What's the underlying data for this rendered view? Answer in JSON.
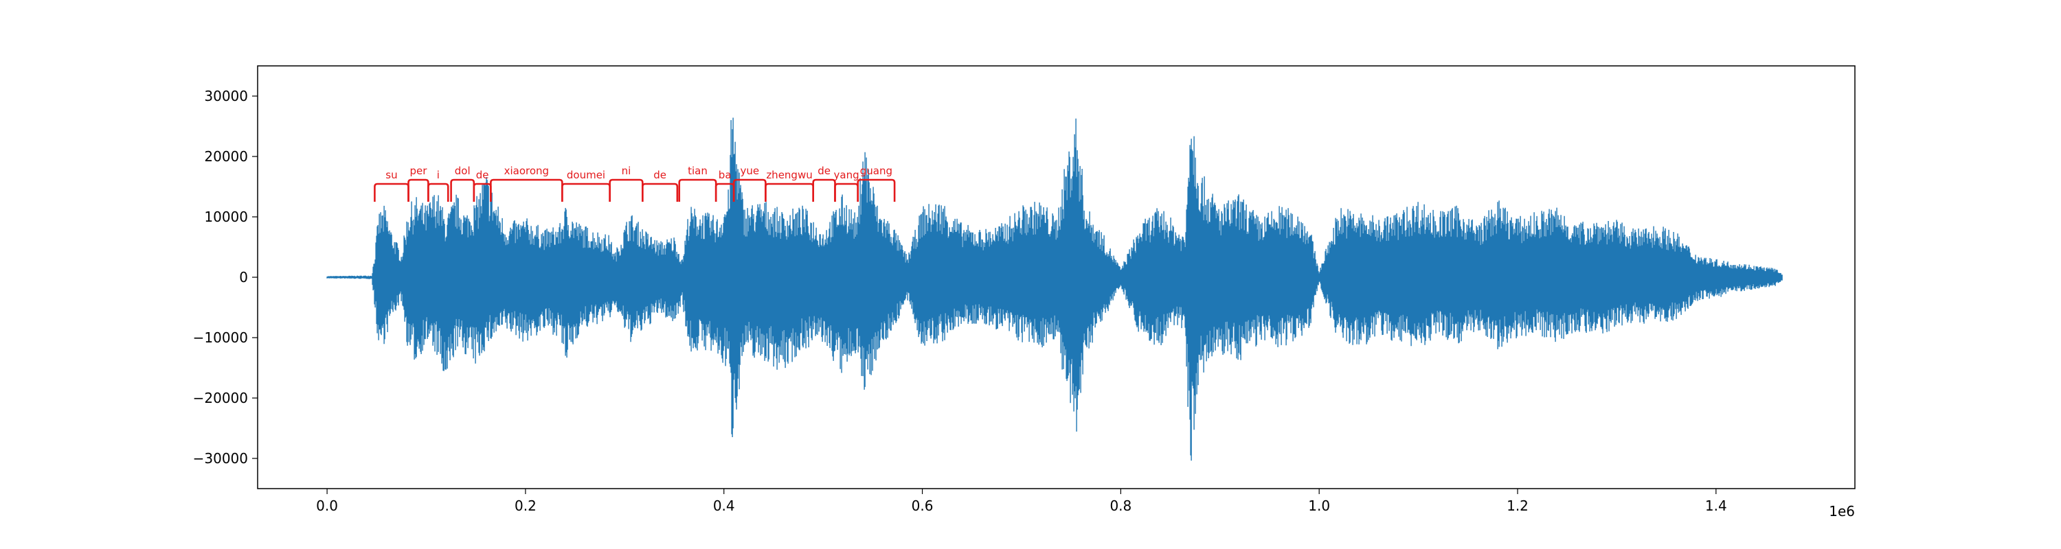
{
  "chart_data": {
    "type": "line",
    "title": "",
    "xlabel": "",
    "ylabel": "",
    "x_offset_label": "1e6",
    "xlim": [
      -70000,
      1540000
    ],
    "ylim": [
      -35000,
      35000
    ],
    "x_ticks": [
      {
        "value": 0.0,
        "label": "0.0"
      },
      {
        "value": 0.2,
        "label": "0.2"
      },
      {
        "value": 0.4,
        "label": "0.4"
      },
      {
        "value": 0.6,
        "label": "0.6"
      },
      {
        "value": 0.8,
        "label": "0.8"
      },
      {
        "value": 1.0,
        "label": "1.0"
      },
      {
        "value": 1.2,
        "label": "1.2"
      },
      {
        "value": 1.4,
        "label": "1.4"
      }
    ],
    "y_ticks": [
      {
        "value": 30000,
        "label": "30000"
      },
      {
        "value": 20000,
        "label": "20000"
      },
      {
        "value": 10000,
        "label": "10000"
      },
      {
        "value": 0,
        "label": "0"
      },
      {
        "value": -10000,
        "label": "−10000"
      },
      {
        "value": -20000,
        "label": "−20000"
      },
      {
        "value": -30000,
        "label": "−30000"
      }
    ],
    "grid": false,
    "legend": "none",
    "series_color": "#1f77b4",
    "annotation_color": "#e31a1c",
    "waveform_envelope": {
      "x": [
        0,
        45000,
        48000,
        52000,
        58000,
        65000,
        75000,
        82000,
        90000,
        100000,
        110000,
        120000,
        130000,
        140000,
        150000,
        160000,
        170000,
        180000,
        200000,
        220000,
        235000,
        240000,
        255000,
        270000,
        285000,
        290000,
        305000,
        320000,
        335000,
        350000,
        358000,
        365000,
        380000,
        395000,
        405000,
        408000,
        420000,
        440000,
        460000,
        480000,
        500000,
        520000,
        535000,
        540000,
        555000,
        570000,
        585000,
        600000,
        620000,
        640000,
        660000,
        680000,
        700000,
        720000,
        735000,
        745000,
        755000,
        765000,
        780000,
        800000,
        820000,
        840000,
        855000,
        865000,
        870000,
        880000,
        900000,
        920000,
        940000,
        960000,
        980000,
        990000,
        1000000,
        1020000,
        1040000,
        1060000,
        1080000,
        1100000,
        1120000,
        1140000,
        1160000,
        1180000,
        1200000,
        1220000,
        1240000,
        1260000,
        1280000,
        1300000,
        1320000,
        1340000,
        1360000,
        1380000,
        1400000,
        1420000,
        1440000,
        1460000,
        1467000
      ],
      "top": [
        200,
        300,
        4000,
        11000,
        12000,
        8000,
        4000,
        12000,
        13500,
        12000,
        15000,
        10000,
        14000,
        11000,
        13000,
        18000,
        13000,
        9000,
        10000,
        8000,
        9000,
        12000,
        9000,
        8000,
        7000,
        4000,
        11000,
        8000,
        6000,
        7000,
        3000,
        12000,
        11000,
        10000,
        15000,
        30500,
        12000,
        13000,
        11000,
        12000,
        8000,
        14000,
        10000,
        24500,
        12000,
        9000,
        3500,
        12000,
        13000,
        9000,
        8000,
        9000,
        12000,
        13000,
        10000,
        20000,
        27500,
        12000,
        8000,
        1500,
        9000,
        12000,
        9000,
        7000,
        32000,
        18000,
        12000,
        14000,
        10000,
        12000,
        11000,
        9000,
        1000,
        12000,
        11000,
        10000,
        11000,
        13000,
        11000,
        12000,
        9000,
        13000,
        10000,
        11000,
        12000,
        9000,
        10000,
        9500,
        8000,
        9000,
        7500,
        4000,
        3000,
        2500,
        2000,
        1500,
        500
      ],
      "bottom": [
        -200,
        -300,
        -5000,
        -12000,
        -11000,
        -7000,
        -4000,
        -13000,
        -14500,
        -11000,
        -13000,
        -19000,
        -12000,
        -13000,
        -15000,
        -12000,
        -10000,
        -9000,
        -11000,
        -9000,
        -10000,
        -15000,
        -9000,
        -8000,
        -7000,
        -5000,
        -11000,
        -9000,
        -6000,
        -8000,
        -4000,
        -13000,
        -12000,
        -14000,
        -16000,
        -28000,
        -13000,
        -14000,
        -16000,
        -12000,
        -11000,
        -17000,
        -12000,
        -21000,
        -13000,
        -9000,
        -4000,
        -12000,
        -11000,
        -8000,
        -8000,
        -9000,
        -11000,
        -12000,
        -10000,
        -20000,
        -28000,
        -13000,
        -8000,
        -1500,
        -10000,
        -12000,
        -8000,
        -9000,
        -32500,
        -17000,
        -13000,
        -14000,
        -11000,
        -12000,
        -10000,
        -9000,
        -1000,
        -11000,
        -12000,
        -10000,
        -11000,
        -12000,
        -10000,
        -11000,
        -9000,
        -12000,
        -10000,
        -9500,
        -11000,
        -9000,
        -10000,
        -8500,
        -7500,
        -8000,
        -7000,
        -4000,
        -3500,
        -2500,
        -2000,
        -1500,
        -500
      ]
    },
    "annotations": [
      {
        "label": "su",
        "x_start": 48000,
        "x_end": 82000
      },
      {
        "label": "per",
        "x_start": 82000,
        "x_end": 102000
      },
      {
        "label": "i",
        "x_start": 102000,
        "x_end": 122000
      },
      {
        "label": "dol",
        "x_start": 125000,
        "x_end": 148000
      },
      {
        "label": "de",
        "x_start": 148000,
        "x_end": 165000
      },
      {
        "label": "xiaorong",
        "x_start": 165000,
        "x_end": 237000
      },
      {
        "label": "doumei",
        "x_start": 237000,
        "x_end": 285000
      },
      {
        "label": "ni",
        "x_start": 285000,
        "x_end": 318000
      },
      {
        "label": "de",
        "x_start": 318000,
        "x_end": 353000
      },
      {
        "label": "tian",
        "x_start": 355000,
        "x_end": 392000
      },
      {
        "label": "ba",
        "x_start": 392000,
        "x_end": 410000
      },
      {
        "label": "yue",
        "x_start": 410000,
        "x_end": 442000
      },
      {
        "label": "zhengwu",
        "x_start": 442000,
        "x_end": 490000
      },
      {
        "label": "de",
        "x_start": 490000,
        "x_end": 512000
      },
      {
        "label": "yang",
        "x_start": 512000,
        "x_end": 535000
      },
      {
        "label": "guang",
        "x_start": 535000,
        "x_end": 572000
      }
    ]
  }
}
